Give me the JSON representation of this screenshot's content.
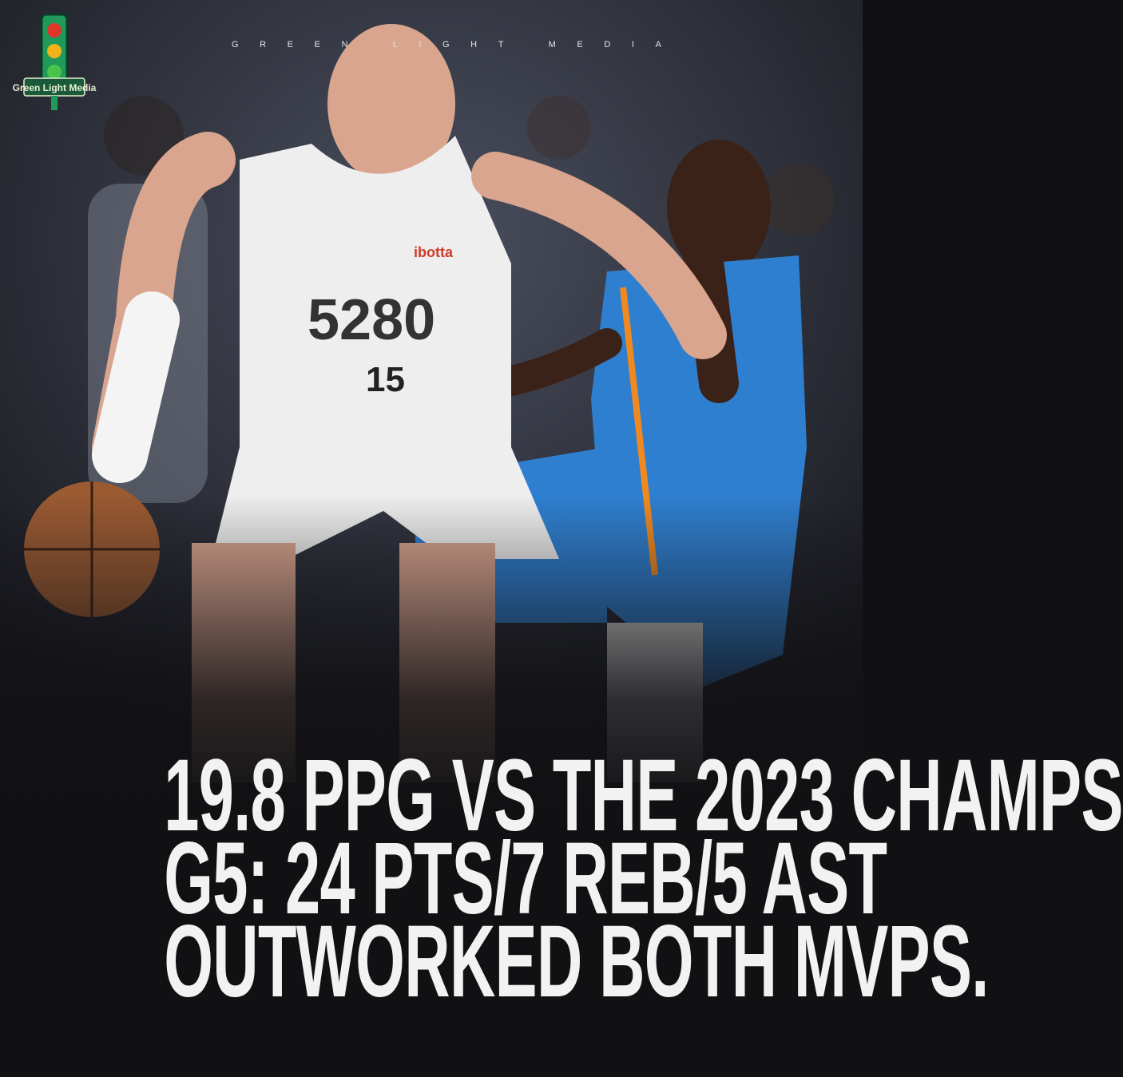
{
  "brand": {
    "name": "GREEN LIGHT MEDIA",
    "letters": [
      "G",
      "R",
      "E",
      "E",
      "N",
      " ",
      "L",
      "I",
      "G",
      "H",
      "T",
      " ",
      "M",
      "E",
      "D",
      "I",
      "A"
    ],
    "logo_text": "Green Light Media",
    "logo_icon": "traffic-light-icon"
  },
  "photo": {
    "jersey_front": "5280",
    "jersey_number": "15",
    "sponsor": "ibotta"
  },
  "headline": {
    "lines": [
      "19.8 PPG VS THE 2023 CHAMPS",
      "G5: 24 PTS/7 REB/5 AST",
      "OUTWORKED BOTH MVPS."
    ]
  },
  "colors": {
    "background": "#111114",
    "text": "#f2f2f2",
    "logo_green": "#1f9a5a",
    "opponent_blue": "#2f7fd0"
  }
}
